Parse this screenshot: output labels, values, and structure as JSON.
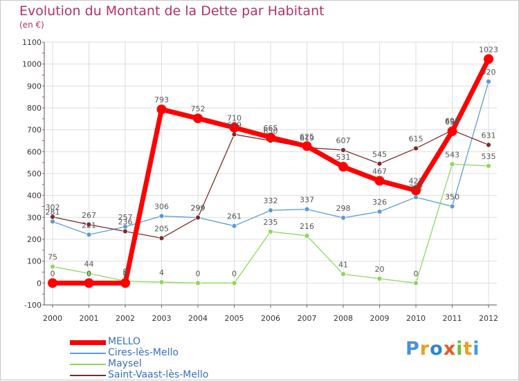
{
  "chart_data": {
    "type": "line",
    "title": "Evolution du Montant de la Dette par Habitant",
    "subtitle": "(en €)",
    "x": [
      "2000",
      "2001",
      "2002",
      "2003",
      "2004",
      "2005",
      "2006",
      "2007",
      "2008",
      "2009",
      "2010",
      "2011",
      "2012"
    ],
    "ylim": [
      -100,
      1100
    ],
    "yticks": [
      -100,
      0,
      100,
      200,
      300,
      400,
      500,
      600,
      700,
      800,
      900,
      1000,
      1100
    ],
    "grid": true,
    "legend_position": "bottom-left",
    "series": [
      {
        "name": "MELLO",
        "color": "#ff0000",
        "values": [
          0,
          0,
          0,
          793,
          752,
          710,
          665,
          625,
          531,
          467,
          423,
          693,
          1023
        ]
      },
      {
        "name": "Cires-lès-Mello",
        "color": "#5b9bd5",
        "values": [
          281,
          221,
          257,
          306,
          299,
          261,
          332,
          337,
          298,
          326,
          392,
          350,
          920
        ]
      },
      {
        "name": "Maysel",
        "color": "#8fd65a",
        "values": [
          75,
          44,
          9,
          4,
          0,
          0,
          235,
          216,
          41,
          20,
          0,
          543,
          535
        ]
      },
      {
        "name": "Saint-Vaast-lès-Mello",
        "color": "#7b2b2b",
        "values": [
          302,
          267,
          236,
          205,
          299,
          679,
          650,
          619,
          607,
          545,
          615,
          698,
          631
        ]
      }
    ]
  },
  "logo": {
    "text": [
      "P",
      "r",
      "o",
      "x",
      "i",
      "t",
      "i"
    ],
    "colors": [
      "#4a90d9",
      "#e8a020",
      "#2f86c9",
      "#e85a20",
      "#6abf3a",
      "#e8a020",
      "#3aa0d9"
    ]
  }
}
